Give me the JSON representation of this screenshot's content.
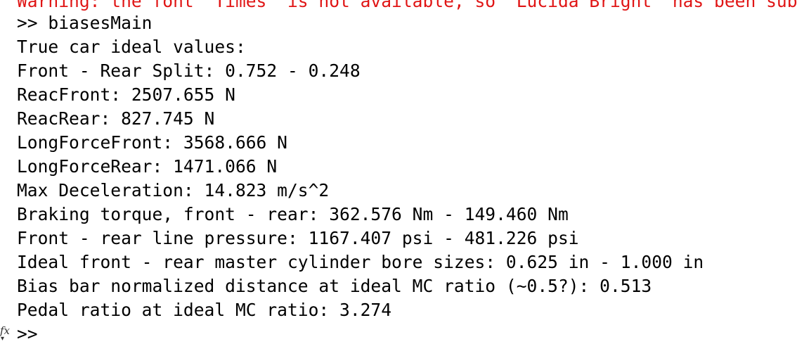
{
  "console": {
    "warning": "Warning: the font \"Times\" is not available, so \"Lucida Bright\" has been substituted, but may have unexpected appearance or behavior. Re-enable the \"Times\" font to remove this warning.",
    "command": ">> biasesMain",
    "lines": [
      "True car ideal values:",
      "Front - Rear Split: 0.752 - 0.248",
      "ReacFront: 2507.655 N",
      "ReacRear: 827.745 N",
      "LongForceFront: 3568.666 N",
      "LongForceRear: 1471.066 N",
      "Max Deceleration: 14.823 m/s^2",
      "Braking torque, front - rear: 362.576 Nm - 149.460 Nm",
      "Front - rear line pressure: 1167.407 psi - 481.226 psi",
      "Ideal front - rear master cylinder bore sizes: 0.625 in - 1.000 in",
      "Bias bar normalized distance at ideal MC ratio (~0.5?): 0.513",
      "Pedal ratio at ideal MC ratio: 3.274"
    ],
    "prompt": ">>",
    "fx_icon_label": "fx"
  },
  "colors": {
    "warning": "#e01515",
    "text": "#000000",
    "background": "#ffffff"
  }
}
